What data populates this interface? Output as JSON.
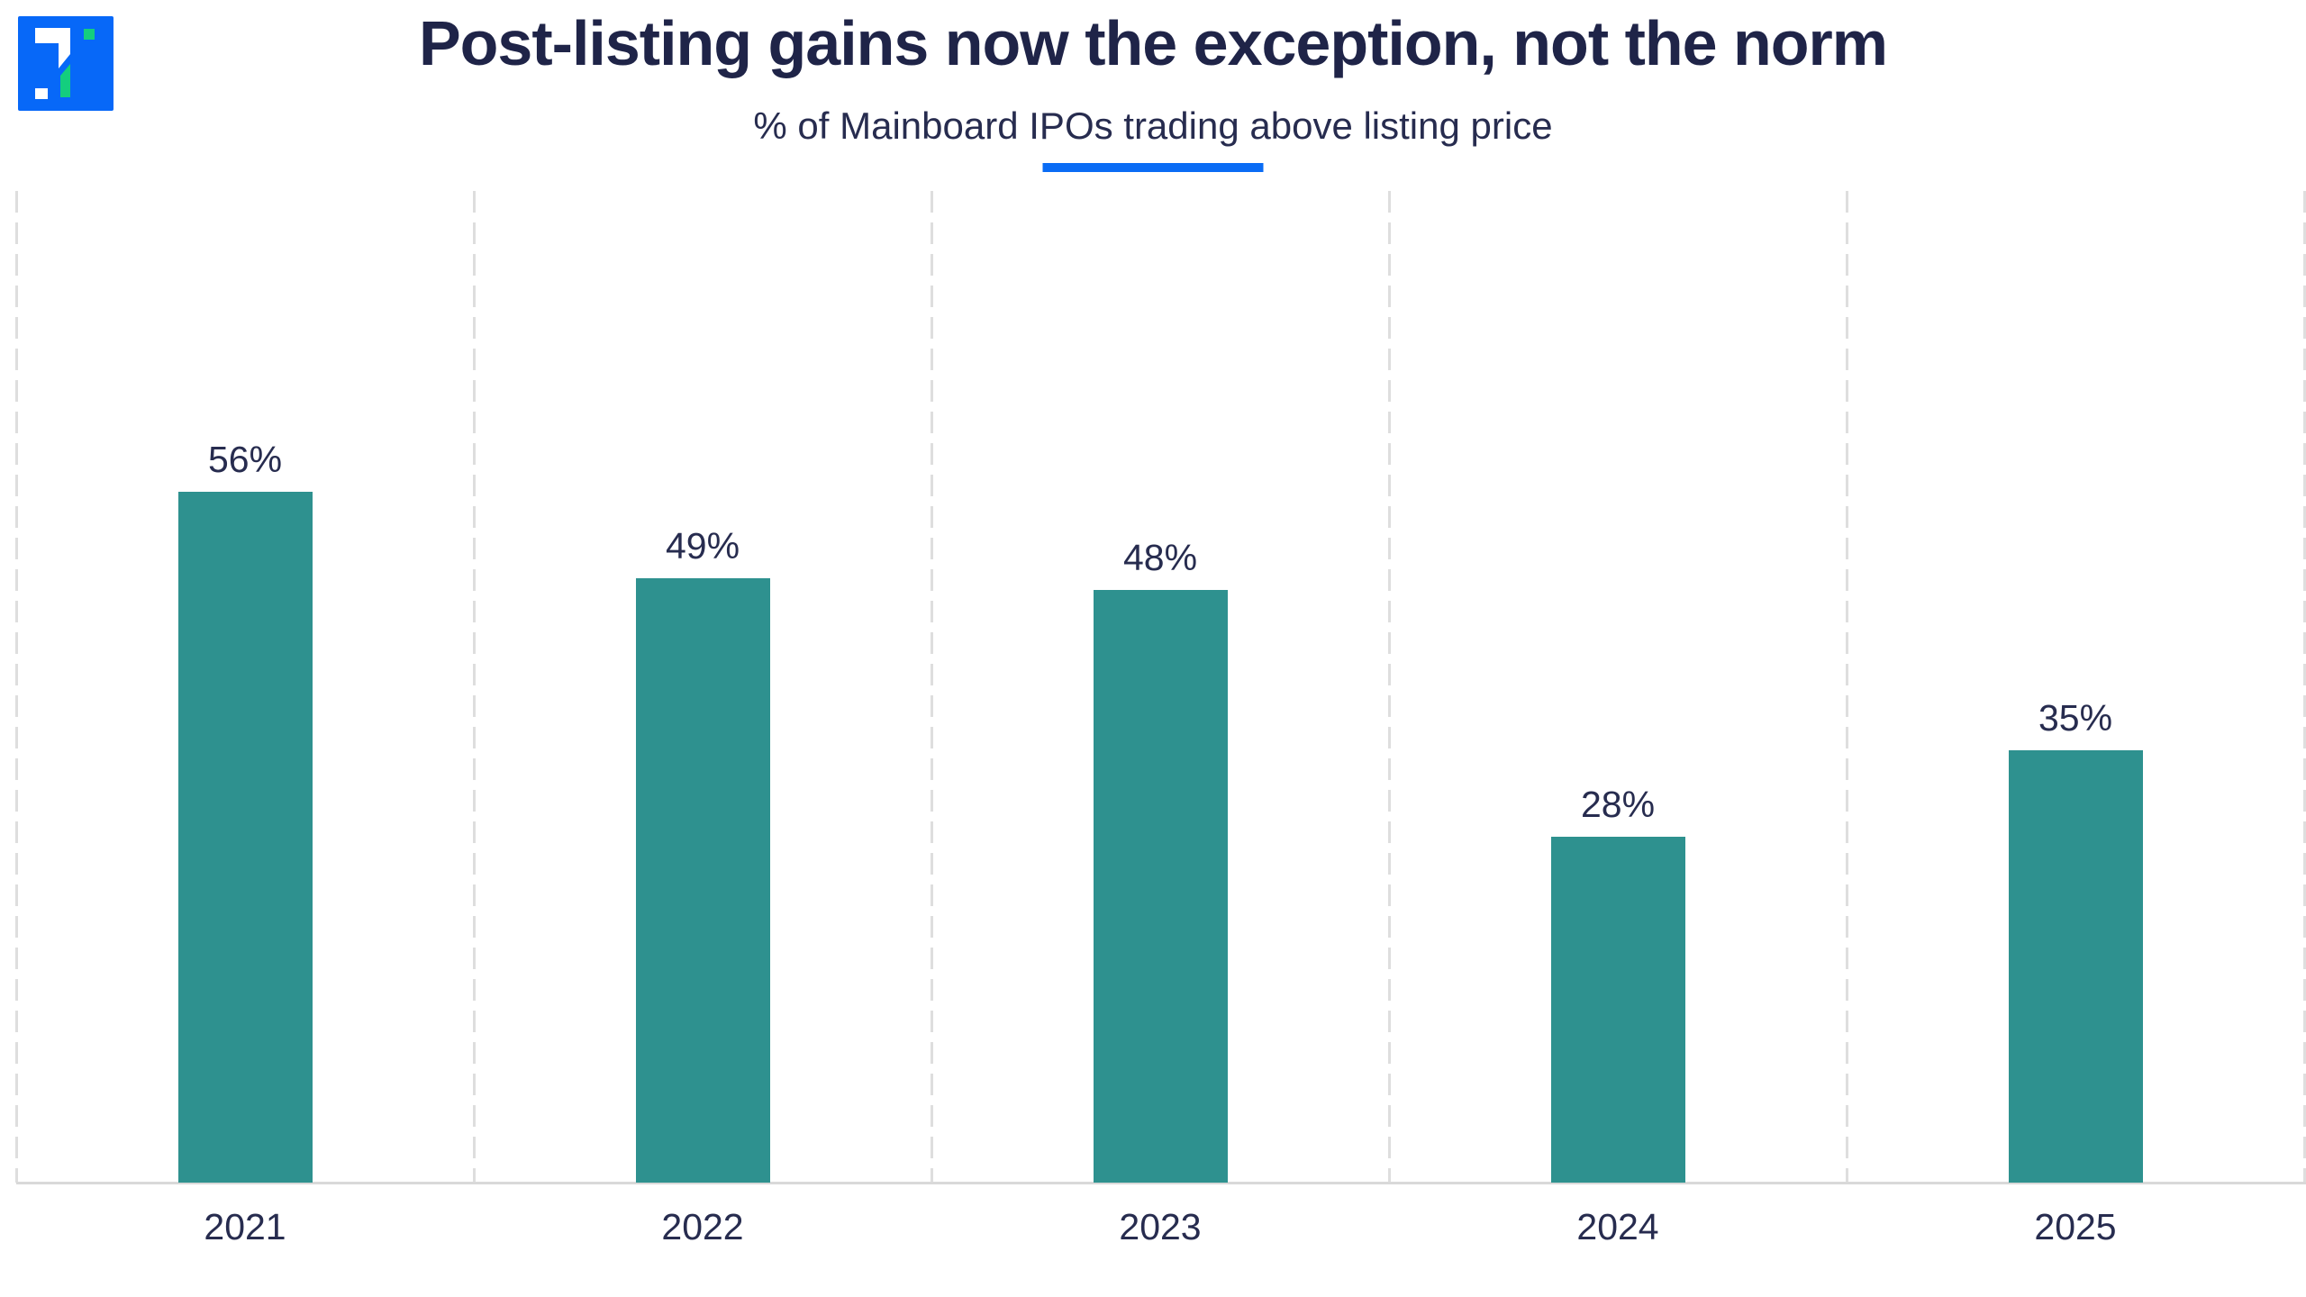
{
  "header": {
    "title": "Post-listing gains now the exception, not the norm",
    "subtitle": "% of Mainboard IPOs trading above listing price"
  },
  "logo": {
    "icon": "brand-logo-icon",
    "background_color": "#0768F8",
    "accent_green": "#14CE7E",
    "accent_white": "#FFFFFF"
  },
  "colors": {
    "title_text": "#1F2448",
    "label_text": "#272C4F",
    "bar_fill": "#2E918F",
    "accent_underline": "#0A6CF5",
    "gridline": "#DEDEDE",
    "baseline": "#D9D9D9",
    "background": "#FFFFFF"
  },
  "chart_data": {
    "type": "bar",
    "title": "Post-listing gains now the exception, not the norm",
    "subtitle": "% of Mainboard IPOs trading above listing price",
    "categories": [
      "2021",
      "2022",
      "2023",
      "2024",
      "2025"
    ],
    "values": [
      56,
      49,
      48,
      28,
      35
    ],
    "value_labels": [
      "56%",
      "49%",
      "48%",
      "28%",
      "35%"
    ],
    "xlabel": "",
    "ylabel": "",
    "ylim": [
      0,
      80
    ],
    "grid": "vertical-dashed",
    "legend": "none",
    "bar_color": "#2E918F"
  }
}
